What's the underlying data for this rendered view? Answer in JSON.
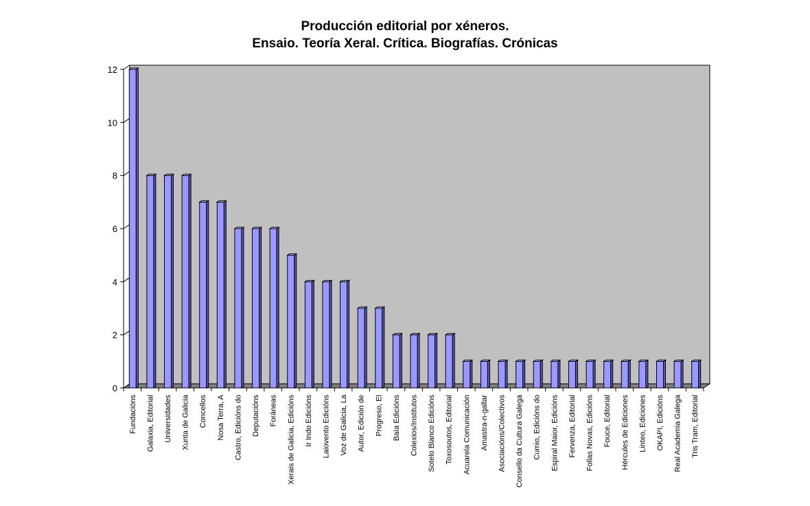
{
  "chart_data": {
    "type": "bar",
    "title": [
      "Producción editorial por xéneros.",
      "Ensaio. Teoría Xeral. Crítica. Biografías. Crónicas"
    ],
    "categories": [
      "Fundacións",
      "Galaxia, Editorial",
      "Universidades",
      "Xunta de Galicia",
      "Concellos",
      "Nosa Terra, A",
      "Castro, Edicións do",
      "Deputacións",
      "Foráneas",
      "Xerais de Galicia, Edicións",
      "Ir Indo Edicións",
      "Laiovento Edicións",
      "Voz de Galicia, La",
      "Autor, Edición de",
      "Progreso, El",
      "Baía Edicións",
      "Colexios/Institutos",
      "Sotelo Blanco Edicións",
      "Toxosoutos, Editorial",
      "Acuarela Comunicación",
      "Amastra-n-gallar",
      "Asociacións/Colectivos",
      "Consello da Cultura Galega",
      "Cumio, Edicións do",
      "Espiral Maior, Edicións",
      "Fervenza, Editorial",
      "Follas Novas, Edicións",
      "Fouce, Editorial",
      "Hércules de Ediciones",
      "Linteo, Ediciones",
      "OKAPI, Edicións",
      "Real Academia Galega",
      "Tris Tram, Editorial"
    ],
    "values": [
      12,
      8,
      8,
      8,
      7,
      7,
      6,
      6,
      6,
      5,
      4,
      4,
      4,
      3,
      3,
      2,
      2,
      2,
      2,
      1,
      1,
      1,
      1,
      1,
      1,
      1,
      1,
      1,
      1,
      1,
      1,
      1,
      1
    ],
    "ylim": [
      0,
      12
    ],
    "yticks": [
      "0",
      "2",
      "4",
      "6",
      "8",
      "10",
      "12"
    ],
    "grid": false,
    "legend": "none",
    "colors": {
      "bar_front": "#9999ff",
      "bar_side": "#5a5ab8",
      "bar_top": "#c6c6ff",
      "wall": "#c0c0c0",
      "floor": "#808080"
    }
  }
}
